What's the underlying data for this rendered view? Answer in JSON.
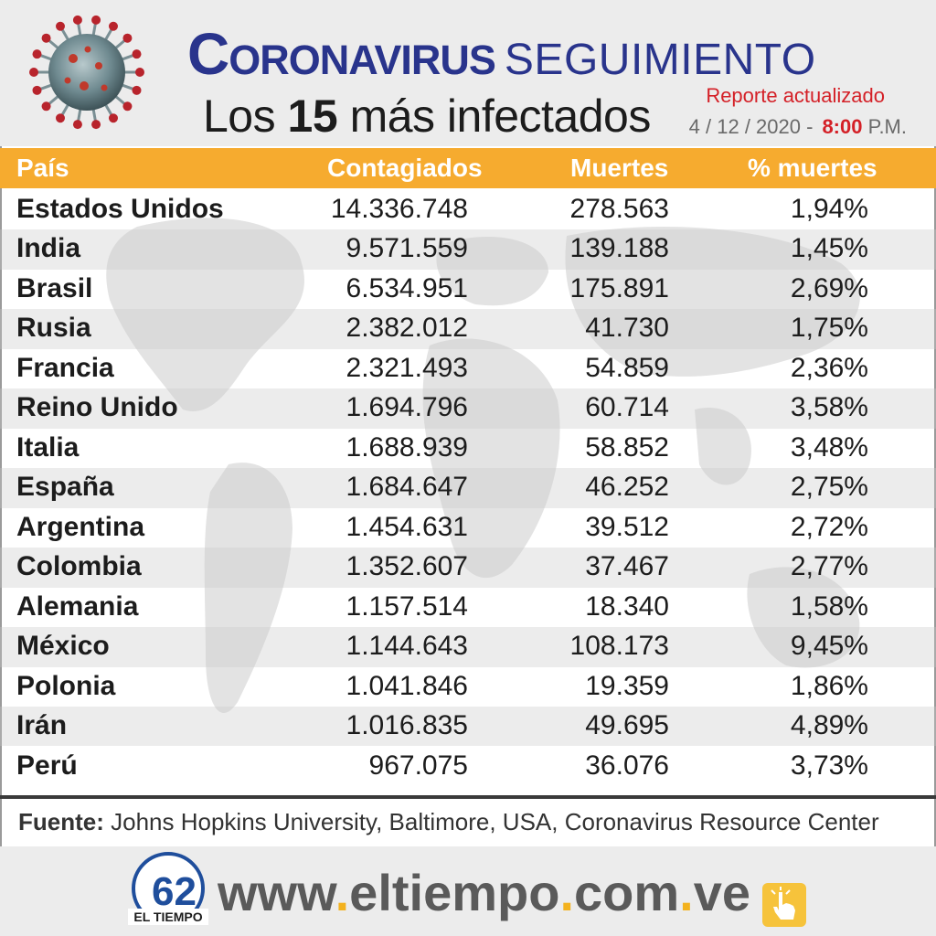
{
  "header": {
    "title_main": "Coronavirus",
    "title_sub": "SEGUIMIENTO",
    "subtitle_prefix": "Los",
    "subtitle_number": "15",
    "subtitle_suffix": "más infectados",
    "report_label": "Reporte actualizado",
    "report_date": "4 / 12  / 2020 -",
    "report_time": "8:00",
    "report_ampm": "P.M."
  },
  "table": {
    "columns": [
      "País",
      "Contagiados",
      "Muertes",
      "% muertes"
    ],
    "rows": [
      [
        "Estados Unidos",
        "14.336.748",
        "278.563",
        "1,94%"
      ],
      [
        "India",
        "9.571.559",
        "139.188",
        "1,45%"
      ],
      [
        "Brasil",
        "6.534.951",
        "175.891",
        "2,69%"
      ],
      [
        "Rusia",
        "2.382.012",
        "41.730",
        "1,75%"
      ],
      [
        "Francia",
        "2.321.493",
        "54.859",
        "2,36%"
      ],
      [
        "Reino Unido",
        "1.694.796",
        "60.714",
        "3,58%"
      ],
      [
        "Italia",
        "1.688.939",
        "58.852",
        "3,48%"
      ],
      [
        "España",
        "1.684.647",
        "46.252",
        "2,75%"
      ],
      [
        "Argentina",
        "1.454.631",
        "39.512",
        "2,72%"
      ],
      [
        "Colombia",
        "1.352.607",
        "37.467",
        "2,77%"
      ],
      [
        "Alemania",
        "1.157.514",
        "18.340",
        "1,58%"
      ],
      [
        "México",
        "1.144.643",
        "108.173",
        "9,45%"
      ],
      [
        "Polonia",
        "1.041.846",
        "19.359",
        "1,86%"
      ],
      [
        "Irán",
        "1.016.835",
        "49.695",
        "4,89%"
      ],
      [
        "Perú",
        "967.075",
        "36.076",
        "3,73%"
      ]
    ]
  },
  "footer": {
    "source_label": "Fuente:",
    "source_text": "Johns Hopkins University, Baltimore, USA, Coronavirus Resource Center",
    "url_parts": [
      "www",
      ".",
      "eltiempo",
      ".",
      "com",
      ".",
      "ve"
    ],
    "logo_text": "EL TIEMPO",
    "logo_number": "62",
    "logo_icon": "el-tiempo-logo",
    "hand_icon": "pointing-hand-icon"
  },
  "colors": {
    "title_blue": "#29348c",
    "header_orange": "#f6ab2f",
    "accent_red": "#d42027",
    "url_dot_yellow": "#f3b21e",
    "url_gray": "#5a5a5a"
  }
}
